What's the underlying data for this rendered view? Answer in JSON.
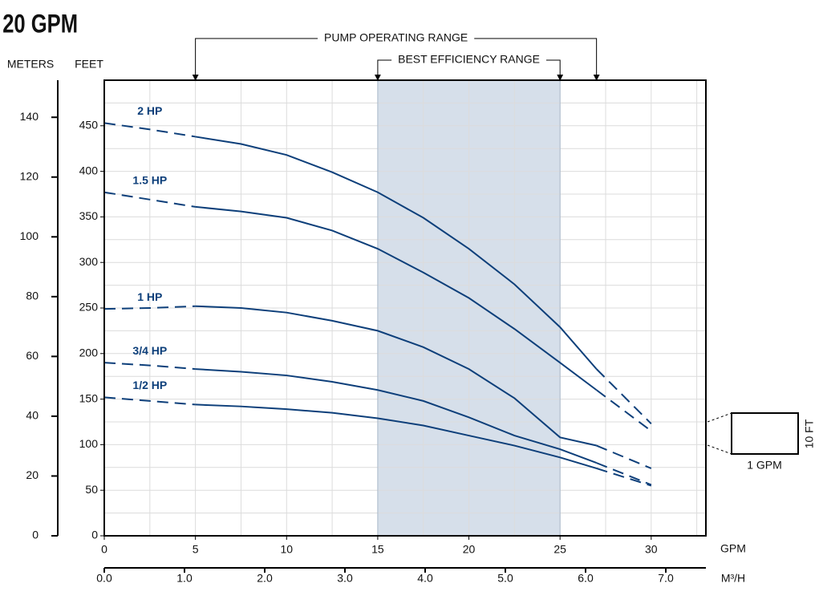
{
  "chart_data": {
    "type": "line",
    "title": "20 GPM",
    "y_label": "FEET",
    "y2_label": "METERS",
    "x_label": "GPM",
    "x2_label": "M³/H",
    "x": [
      0,
      2.5,
      5,
      7.5,
      10,
      12.5,
      15,
      17.5,
      20,
      22.5,
      25,
      27,
      30
    ],
    "series": [
      {
        "name": "2 HP",
        "color": "#0d3f7a",
        "values": [
          453,
          446,
          438,
          430,
          418,
          399,
          377,
          349,
          315,
          276,
          229,
          183,
          123
        ]
      },
      {
        "name": "1.5 HP",
        "color": "#0d3f7a",
        "values": [
          377,
          369,
          361,
          356,
          349,
          335,
          315,
          289,
          261,
          227,
          190,
          160,
          115
        ]
      },
      {
        "name": "1 HP",
        "color": "#0d3f7a",
        "values": [
          249,
          250,
          252,
          250,
          245,
          236,
          225,
          207,
          183,
          151,
          108,
          99,
          74
        ]
      },
      {
        "name": "3/4 HP",
        "color": "#0d3f7a",
        "values": [
          190,
          187,
          183,
          180,
          176,
          169,
          160,
          148,
          130,
          110,
          95,
          80,
          56
        ]
      },
      {
        "name": "1/2 HP",
        "color": "#0d3f7a",
        "values": [
          152,
          148,
          144,
          142,
          139,
          135,
          129,
          121,
          110,
          99,
          86,
          74,
          55
        ]
      }
    ],
    "xlim": [
      0,
      33
    ],
    "xticks": [
      0,
      5,
      10,
      15,
      20,
      25,
      30
    ],
    "ylim": [
      0,
      500
    ],
    "yticks": [
      0,
      50,
      100,
      150,
      200,
      250,
      300,
      350,
      400,
      450
    ],
    "y2lim": [
      0,
      152.4
    ],
    "y2ticks": [
      0,
      20,
      40,
      60,
      80,
      100,
      120,
      140
    ],
    "x2lim": [
      0,
      7.5
    ],
    "x2ticks": [
      {
        "value": 0,
        "label": "0.0"
      },
      {
        "value": 1,
        "label": "1.0"
      },
      {
        "value": 2,
        "label": "2.0"
      },
      {
        "value": 3,
        "label": "3.0"
      },
      {
        "value": 4,
        "label": "4.0"
      },
      {
        "value": 5,
        "label": "5.0"
      },
      {
        "value": 6,
        "label": "6.0"
      },
      {
        "value": 7,
        "label": "7.0"
      }
    ],
    "xgrid": [
      2.5,
      5,
      7.5,
      10,
      12.5,
      15,
      17.5,
      20,
      22.5,
      25,
      27.5,
      30,
      32.5
    ],
    "ygrid": [
      25,
      50,
      75,
      100,
      125,
      150,
      175,
      200,
      225,
      250,
      275,
      300,
      325,
      350,
      375,
      400,
      425,
      450,
      475
    ],
    "grid": true,
    "operating_range": {
      "label": "PUMP OPERATING RANGE",
      "range": [
        5,
        27
      ]
    },
    "efficiency_range": {
      "label": "BEST EFFICIENCY RANGE",
      "range": [
        15,
        25
      ],
      "color": "#d6dfea"
    },
    "scale_box": {
      "x_label": "1 GPM",
      "y_label": "10 FT"
    }
  }
}
